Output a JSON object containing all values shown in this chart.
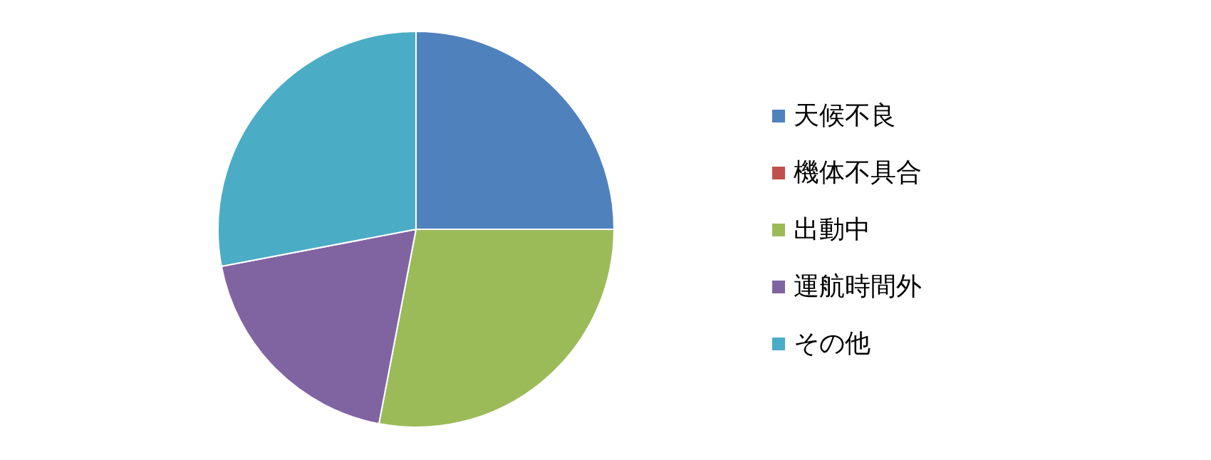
{
  "chart_data": {
    "type": "pie",
    "categories": [
      "天候不良",
      "機体不具合",
      "出動中",
      "運航時間外",
      "その他"
    ],
    "values": [
      25,
      0,
      28,
      19,
      28
    ],
    "colors": [
      "#4f81bd",
      "#c0504d",
      "#9bbb59",
      "#8064a2",
      "#4bacc6"
    ],
    "legend": "right"
  }
}
